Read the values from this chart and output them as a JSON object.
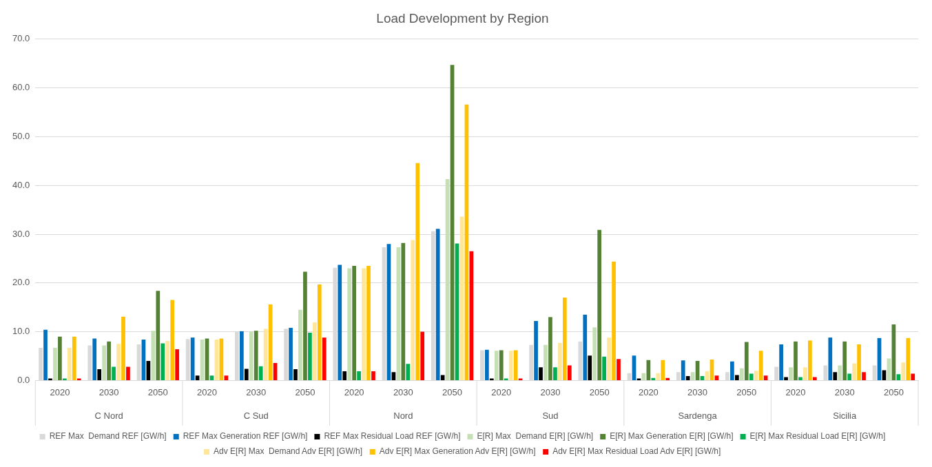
{
  "chart_data": {
    "type": "bar",
    "title": "Load Development by Region",
    "categories": [
      "2020",
      "2030",
      "2050",
      "2020",
      "2030",
      "2050",
      "2020",
      "2030",
      "2050",
      "2020",
      "2030",
      "2050",
      "2020",
      "2030",
      "2050",
      "2020",
      "2030",
      "2050"
    ],
    "annotations": [
      "C Nord",
      "C Sud",
      "Nord",
      "Sud",
      "Sardenga",
      "Sicilia"
    ],
    "series": [
      {
        "name": "REF Max  Demand REF [GW/h]",
        "color": "#d9d9d9",
        "values": [
          6.7,
          7.2,
          7.4,
          8.5,
          10.0,
          10.6,
          23.1,
          27.3,
          30.6,
          6.2,
          7.3,
          8.0,
          1.5,
          1.7,
          1.7,
          2.8,
          3.1,
          3.1
        ]
      },
      {
        "name": "REF Max Generation REF [GW/h]",
        "color": "#0070c0",
        "values": [
          10.4,
          8.6,
          8.4,
          8.8,
          10.1,
          10.8,
          23.7,
          28.0,
          31.1,
          6.3,
          12.2,
          13.5,
          5.1,
          4.1,
          3.9,
          7.4,
          8.8,
          8.7
        ]
      },
      {
        "name": "REF Max Residual Load REF [GW/h]",
        "color": "#000000",
        "values": [
          0.4,
          2.3,
          4.0,
          1.0,
          2.4,
          2.3,
          1.9,
          1.7,
          1.1,
          0.4,
          2.7,
          5.1,
          0.4,
          0.9,
          1.1,
          0.7,
          1.7,
          2.1
        ]
      },
      {
        "name": "E[R] Max  Demand E[R] [GW/h]",
        "color": "#c5e0b4",
        "values": [
          6.7,
          7.2,
          10.2,
          8.4,
          10.0,
          14.5,
          23.0,
          27.3,
          41.3,
          6.1,
          7.3,
          10.9,
          1.5,
          1.7,
          2.5,
          2.7,
          3.1,
          4.5
        ]
      },
      {
        "name": "E[R] Max Generation E[R] [GW/h]",
        "color": "#548235",
        "values": [
          9.0,
          8.0,
          18.4,
          8.6,
          10.2,
          22.3,
          23.5,
          28.2,
          64.7,
          6.2,
          13.0,
          30.9,
          4.2,
          4.0,
          7.9,
          8.0,
          8.0,
          11.5
        ]
      },
      {
        "name": "E[R] Max Residual Load E[R] [GW/h]",
        "color": "#00b050",
        "values": [
          0.4,
          2.8,
          7.6,
          1.0,
          2.9,
          9.8,
          1.9,
          3.4,
          28.1,
          0.4,
          2.7,
          4.9,
          0.5,
          0.9,
          1.4,
          0.7,
          1.4,
          1.3
        ]
      },
      {
        "name": "Adv E[R] Max  Demand Adv E[R] [GW/h]",
        "color": "#ffe699",
        "values": [
          6.7,
          7.5,
          8.1,
          8.4,
          10.6,
          11.9,
          23.0,
          28.8,
          33.6,
          6.1,
          7.7,
          8.8,
          1.5,
          1.9,
          2.0,
          2.7,
          3.5,
          3.7
        ]
      },
      {
        "name": "Adv E[R] Max Generation Adv E[R] [GW/h]",
        "color": "#ffc000",
        "values": [
          9.0,
          13.1,
          16.5,
          8.6,
          15.6,
          19.7,
          23.5,
          44.6,
          56.6,
          6.2,
          17.0,
          24.4,
          4.2,
          4.3,
          6.1,
          8.2,
          7.4,
          8.7
        ]
      },
      {
        "name": "Adv E[R] Max Residual Load Adv E[R] [GW/h]",
        "color": "#ff0000",
        "values": [
          0.4,
          2.8,
          6.4,
          1.0,
          3.6,
          8.8,
          1.9,
          10.0,
          26.5,
          0.4,
          3.1,
          4.4,
          0.5,
          1.0,
          1.0,
          0.7,
          1.7,
          1.4
        ]
      }
    ],
    "ylim": [
      0,
      70
    ],
    "yticks": [
      {
        "value": 0,
        "label": "0.0"
      },
      {
        "value": 10,
        "label": "10.0"
      },
      {
        "value": 20,
        "label": "20.0"
      },
      {
        "value": 30,
        "label": "30.0"
      },
      {
        "value": 40,
        "label": "40.0"
      },
      {
        "value": 50,
        "label": "50.0"
      },
      {
        "value": 60,
        "label": "60.0"
      },
      {
        "value": 70,
        "label": "70.0"
      }
    ],
    "grid": "y",
    "legend": "bottom"
  }
}
